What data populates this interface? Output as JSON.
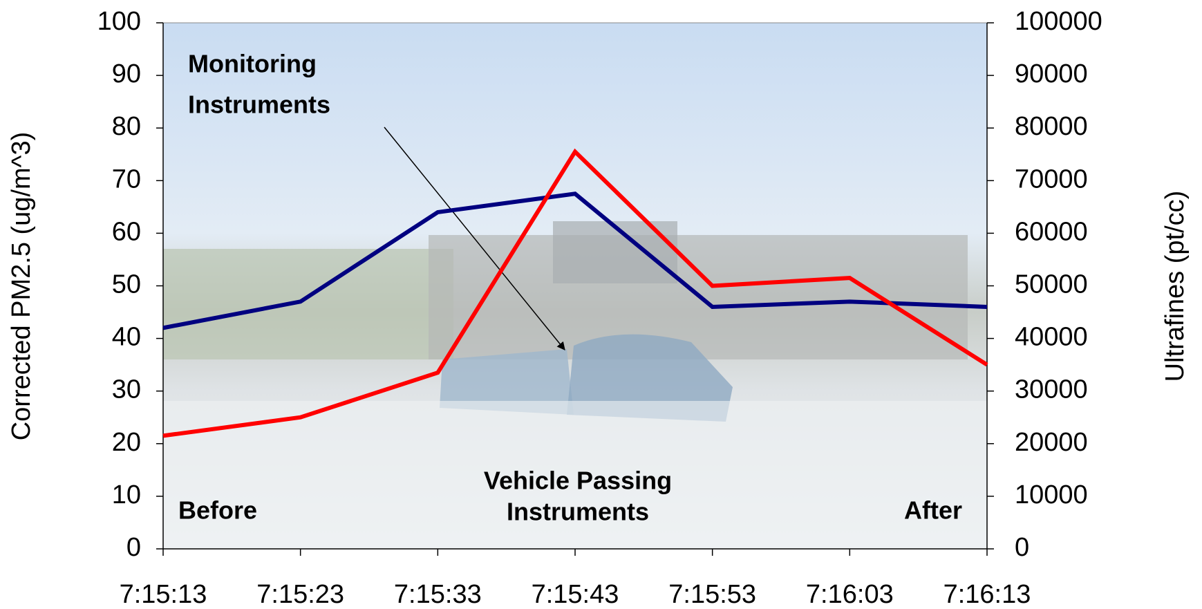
{
  "chart_data": {
    "type": "line",
    "categories": [
      "7:15:13",
      "7:15:23",
      "7:15:33",
      "7:15:43",
      "7:15:53",
      "7:16:03",
      "7:16:13"
    ],
    "series": [
      {
        "color": "#000080",
        "values": [
          42,
          47,
          64,
          67.5,
          46,
          47,
          46
        ]
      },
      {
        "color": "#ff0000",
        "axis": "y2",
        "values": [
          21500,
          25000,
          33500,
          75500,
          50000,
          51500,
          35000
        ]
      }
    ],
    "ylabel": "Corrected PM2.5 (ug/m^3)",
    "y2label": "Ultrafines (pt/cc)",
    "ylim": [
      0,
      100
    ],
    "yticks": [
      0,
      10,
      20,
      30,
      40,
      50,
      60,
      70,
      80,
      90,
      100
    ],
    "y2lim": [
      0,
      100000
    ],
    "y2ticks": [
      0,
      10000,
      20000,
      30000,
      40000,
      50000,
      60000,
      70000,
      80000,
      90000,
      100000
    ],
    "annotations": [
      {
        "lines": [
          "Monitoring",
          "Instruments"
        ]
      },
      {
        "lines": [
          "Vehicle Passing",
          "Instruments"
        ]
      },
      {
        "lines": [
          "Before"
        ]
      },
      {
        "lines": [
          "After"
        ]
      }
    ]
  }
}
